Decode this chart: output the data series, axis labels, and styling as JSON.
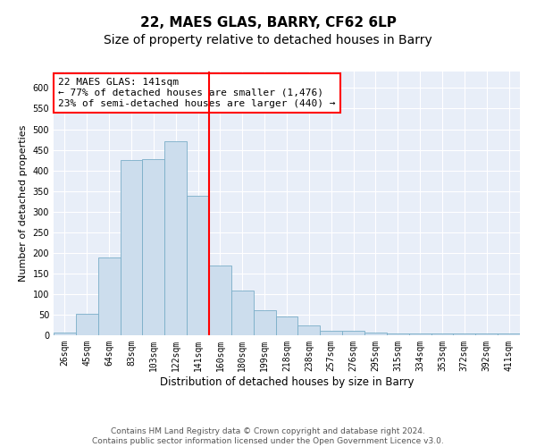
{
  "title": "22, MAES GLAS, BARRY, CF62 6LP",
  "subtitle": "Size of property relative to detached houses in Barry",
  "xlabel": "Distribution of detached houses by size in Barry",
  "ylabel": "Number of detached properties",
  "bar_labels": [
    "26sqm",
    "45sqm",
    "64sqm",
    "83sqm",
    "103sqm",
    "122sqm",
    "141sqm",
    "160sqm",
    "180sqm",
    "199sqm",
    "218sqm",
    "238sqm",
    "257sqm",
    "276sqm",
    "295sqm",
    "315sqm",
    "334sqm",
    "353sqm",
    "372sqm",
    "392sqm",
    "411sqm"
  ],
  "bar_values": [
    7,
    51,
    188,
    425,
    428,
    470,
    338,
    170,
    108,
    61,
    46,
    23,
    11,
    11,
    7,
    5,
    4,
    5,
    5,
    4,
    5
  ],
  "bar_color": "#ccdded",
  "bar_edgecolor": "#7aaec8",
  "vline_color": "red",
  "annotation_text": "22 MAES GLAS: 141sqm\n← 77% of detached houses are smaller (1,476)\n23% of semi-detached houses are larger (440) →",
  "annotation_box_color": "white",
  "annotation_box_edgecolor": "red",
  "ylim": [
    0,
    640
  ],
  "yticks": [
    0,
    50,
    100,
    150,
    200,
    250,
    300,
    350,
    400,
    450,
    500,
    550,
    600
  ],
  "background_color": "#e8eef8",
  "footer_text": "Contains HM Land Registry data © Crown copyright and database right 2024.\nContains public sector information licensed under the Open Government Licence v3.0.",
  "title_fontsize": 11,
  "subtitle_fontsize": 10,
  "xlabel_fontsize": 8.5,
  "ylabel_fontsize": 8,
  "tick_fontsize": 7,
  "annotation_fontsize": 8,
  "footer_fontsize": 6.5
}
